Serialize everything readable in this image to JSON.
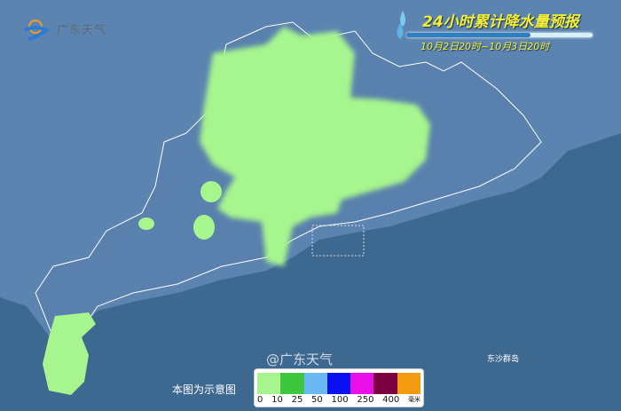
{
  "logo": {
    "text": "广东天气"
  },
  "header": {
    "title": "24小时累计降水量预报",
    "period": "10月2日20时~10月3日20时"
  },
  "map_labels": {
    "island": "东沙群岛",
    "note": "本图为示意图"
  },
  "legend": {
    "unit": "毫米",
    "colors": [
      "#a6f58e",
      "#3fc63f",
      "#6ab8f5",
      "#0b10f0",
      "#e80fe8",
      "#7a0040",
      "#f29a10"
    ],
    "ticks": [
      "0",
      "10",
      "25",
      "50",
      "100",
      "250",
      "400"
    ]
  },
  "watermark": "@广东天气",
  "colors": {
    "sea": "#3d6890",
    "land": "#5b84b0",
    "rain_light": "#a6f58e",
    "title": "#f2ee3a"
  }
}
